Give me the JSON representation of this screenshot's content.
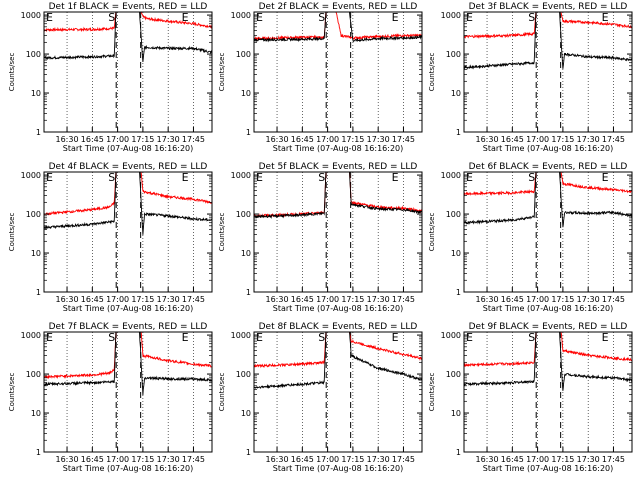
{
  "chart_data": [
    {
      "type": "line",
      "title": "Det 1f BLACK = Events, RED = LLD",
      "xlabel": "Start Time (07-Aug-08 16:16:20)",
      "ylabel": "Counts/sec",
      "ylim": [
        1,
        1200
      ],
      "yscale": "log",
      "xlim": [
        "16:16:20",
        "17:56:00"
      ],
      "xticks": [
        "16:30",
        "16:45",
        "17:00",
        "17:15",
        "17:30",
        "17:45"
      ],
      "yticks": [
        "1",
        "10",
        "100",
        "1000"
      ],
      "markers": [
        "E",
        "S",
        "E"
      ],
      "series": [
        {
          "color": "#ff0000",
          "points": [
            [
              "16:16:20",
              420
            ],
            [
              "16:45",
              430
            ],
            [
              "16:55",
              450
            ],
            [
              "16:58",
              460
            ],
            [
              "16:59",
              1200
            ],
            [
              "17:10",
              1200
            ],
            [
              "17:14",
              1200
            ],
            [
              "17:15",
              900
            ],
            [
              "17:18",
              800
            ],
            [
              "17:30",
              700
            ],
            [
              "17:45",
              600
            ],
            [
              "17:56",
              500
            ]
          ]
        },
        {
          "color": "#000000",
          "points": [
            [
              "16:16:20",
              80
            ],
            [
              "16:45",
              85
            ],
            [
              "16:58",
              90
            ],
            [
              "16:59",
              1200
            ],
            [
              "17:13",
              1200
            ],
            [
              "17:15",
              60
            ],
            [
              "17:16",
              150
            ],
            [
              "17:30",
              140
            ],
            [
              "17:45",
              140
            ],
            [
              "17:56",
              110
            ]
          ]
        }
      ]
    },
    {
      "type": "line",
      "title": "Det 2f BLACK = Events, RED = LLD",
      "xlabel": "Start Time (07-Aug-08 16:16:20)",
      "ylabel": "Counts/sec",
      "ylim": [
        1,
        1200
      ],
      "yscale": "log",
      "xlim": [
        "16:16:20",
        "17:56:00"
      ],
      "xticks": [
        "16:30",
        "16:45",
        "17:00",
        "17:15",
        "17:30",
        "17:45"
      ],
      "yticks": [
        "1",
        "10",
        "100",
        "1000"
      ],
      "markers": [
        "E",
        "S",
        "E"
      ],
      "series": [
        {
          "color": "#ff0000",
          "points": [
            [
              "16:16:20",
              250
            ],
            [
              "16:45",
              270
            ],
            [
              "16:58",
              270
            ],
            [
              "16:59",
              1200
            ],
            [
              "17:05",
              1200
            ],
            [
              "17:08",
              300
            ],
            [
              "17:15",
              260
            ],
            [
              "17:30",
              280
            ],
            [
              "17:45",
              300
            ],
            [
              "17:56",
              300
            ]
          ]
        },
        {
          "color": "#000000",
          "points": [
            [
              "16:16:20",
              230
            ],
            [
              "16:45",
              240
            ],
            [
              "16:58",
              250
            ],
            [
              "16:59",
              1200
            ],
            [
              "17:13",
              1200
            ],
            [
              "17:15",
              220
            ],
            [
              "17:30",
              250
            ],
            [
              "17:45",
              260
            ],
            [
              "17:56",
              270
            ]
          ]
        }
      ]
    },
    {
      "type": "line",
      "title": "Det 3f BLACK = Events, RED = LLD",
      "xlabel": "Start Time (07-Aug-08 16:16:20)",
      "ylabel": "Counts/sec",
      "ylim": [
        1,
        1200
      ],
      "yscale": "log",
      "xlim": [
        "16:16:20",
        "17:56:00"
      ],
      "xticks": [
        "16:30",
        "16:45",
        "17:00",
        "17:15",
        "17:30",
        "17:45"
      ],
      "yticks": [
        "1",
        "10",
        "100",
        "1000"
      ],
      "markers": [
        "E",
        "S",
        "E"
      ],
      "series": [
        {
          "color": "#ff0000",
          "points": [
            [
              "16:16:20",
              280
            ],
            [
              "16:45",
              300
            ],
            [
              "16:58",
              330
            ],
            [
              "16:59",
              1200
            ],
            [
              "17:14",
              1200
            ],
            [
              "17:15",
              700
            ],
            [
              "17:30",
              650
            ],
            [
              "17:45",
              580
            ],
            [
              "17:56",
              500
            ]
          ]
        },
        {
          "color": "#000000",
          "points": [
            [
              "16:16:20",
              45
            ],
            [
              "16:45",
              55
            ],
            [
              "16:58",
              60
            ],
            [
              "16:59",
              1200
            ],
            [
              "17:13",
              1200
            ],
            [
              "17:15",
              40
            ],
            [
              "17:16",
              100
            ],
            [
              "17:30",
              85
            ],
            [
              "17:45",
              80
            ],
            [
              "17:56",
              70
            ]
          ]
        }
      ]
    },
    {
      "type": "line",
      "title": "Det 4f BLACK = Events, RED = LLD",
      "xlabel": "Start Time (07-Aug-08 16:16:20)",
      "ylabel": "Counts/sec",
      "ylim": [
        1,
        1200
      ],
      "yscale": "log",
      "xlim": [
        "16:16:20",
        "17:56:00"
      ],
      "xticks": [
        "16:30",
        "16:45",
        "17:00",
        "17:15",
        "17:30",
        "17:45"
      ],
      "yticks": [
        "1",
        "10",
        "100",
        "1000"
      ],
      "markers": [
        "E",
        "S",
        "E"
      ],
      "series": [
        {
          "color": "#ff0000",
          "points": [
            [
              "16:16:20",
              100
            ],
            [
              "16:45",
              130
            ],
            [
              "16:55",
              150
            ],
            [
              "16:58",
              190
            ],
            [
              "16:59",
              1200
            ],
            [
              "17:14",
              1200
            ],
            [
              "17:15",
              380
            ],
            [
              "17:30",
              280
            ],
            [
              "17:45",
              240
            ],
            [
              "17:56",
              200
            ]
          ]
        },
        {
          "color": "#000000",
          "points": [
            [
              "16:16:20",
              45
            ],
            [
              "16:45",
              55
            ],
            [
              "16:58",
              65
            ],
            [
              "16:59",
              1200
            ],
            [
              "17:13",
              1200
            ],
            [
              "17:15",
              30
            ],
            [
              "17:16",
              100
            ],
            [
              "17:30",
              90
            ],
            [
              "17:45",
              75
            ],
            [
              "17:56",
              70
            ]
          ]
        }
      ]
    },
    {
      "type": "line",
      "title": "Det 5f BLACK = Events, RED = LLD",
      "xlabel": "Start Time (07-Aug-08 16:16:20)",
      "ylabel": "Counts/sec",
      "ylim": [
        1,
        1200
      ],
      "yscale": "log",
      "xlim": [
        "16:16:20",
        "17:56:00"
      ],
      "xticks": [
        "16:30",
        "16:45",
        "17:00",
        "17:15",
        "17:30",
        "17:45"
      ],
      "yticks": [
        "1",
        "10",
        "100",
        "1000"
      ],
      "markers": [
        "E",
        "S",
        "E"
      ],
      "series": [
        {
          "color": "#ff0000",
          "points": [
            [
              "16:16:20",
              90
            ],
            [
              "16:45",
              100
            ],
            [
              "16:58",
              110
            ],
            [
              "16:59",
              1200
            ],
            [
              "17:13",
              1200
            ],
            [
              "17:14",
              200
            ],
            [
              "17:30",
              150
            ],
            [
              "17:45",
              140
            ],
            [
              "17:56",
              120
            ]
          ]
        },
        {
          "color": "#000000",
          "points": [
            [
              "16:16:20",
              85
            ],
            [
              "16:45",
              95
            ],
            [
              "16:58",
              105
            ],
            [
              "16:59",
              1200
            ],
            [
              "17:13",
              1200
            ],
            [
              "17:14",
              180
            ],
            [
              "17:30",
              135
            ],
            [
              "17:45",
              130
            ],
            [
              "17:56",
              110
            ]
          ]
        }
      ]
    },
    {
      "type": "line",
      "title": "Det 6f BLACK = Events, RED = LLD",
      "xlabel": "Start Time (07-Aug-08 16:16:20)",
      "ylabel": "Counts/sec",
      "ylim": [
        1,
        1200
      ],
      "yscale": "log",
      "xlim": [
        "16:16:20",
        "17:56:00"
      ],
      "xticks": [
        "16:30",
        "16:45",
        "17:00",
        "17:15",
        "17:30",
        "17:45"
      ],
      "yticks": [
        "1",
        "10",
        "100",
        "1000"
      ],
      "markers": [
        "E",
        "S",
        "E"
      ],
      "series": [
        {
          "color": "#ff0000",
          "points": [
            [
              "16:16:20",
              330
            ],
            [
              "16:45",
              350
            ],
            [
              "16:58",
              380
            ],
            [
              "16:59",
              1200
            ],
            [
              "17:14",
              1200
            ],
            [
              "17:15",
              600
            ],
            [
              "17:30",
              480
            ],
            [
              "17:45",
              420
            ],
            [
              "17:56",
              380
            ]
          ]
        },
        {
          "color": "#000000",
          "points": [
            [
              "16:16:20",
              60
            ],
            [
              "16:45",
              70
            ],
            [
              "16:58",
              85
            ],
            [
              "16:59",
              1200
            ],
            [
              "17:13",
              1200
            ],
            [
              "17:15",
              45
            ],
            [
              "17:16",
              110
            ],
            [
              "17:30",
              105
            ],
            [
              "17:45",
              110
            ],
            [
              "17:56",
              90
            ]
          ]
        }
      ]
    },
    {
      "type": "line",
      "title": "Det 7f BLACK = Events, RED = LLD",
      "xlabel": "Start Time (07-Aug-08 16:16:20)",
      "ylabel": "Counts/sec",
      "ylim": [
        1,
        1200
      ],
      "yscale": "log",
      "xlim": [
        "16:16:20",
        "17:56:00"
      ],
      "xticks": [
        "16:30",
        "16:45",
        "17:00",
        "17:15",
        "17:30",
        "17:45"
      ],
      "yticks": [
        "1",
        "10",
        "100",
        "1000"
      ],
      "markers": [
        "E",
        "S",
        "E"
      ],
      "series": [
        {
          "color": "#ff0000",
          "points": [
            [
              "16:16:20",
              85
            ],
            [
              "16:45",
              95
            ],
            [
              "16:55",
              105
            ],
            [
              "16:58",
              130
            ],
            [
              "16:59",
              1200
            ],
            [
              "17:14",
              1200
            ],
            [
              "17:15",
              300
            ],
            [
              "17:30",
              220
            ],
            [
              "17:45",
              180
            ],
            [
              "17:56",
              160
            ]
          ]
        },
        {
          "color": "#000000",
          "points": [
            [
              "16:16:20",
              55
            ],
            [
              "16:45",
              60
            ],
            [
              "16:58",
              65
            ],
            [
              "16:59",
              1200
            ],
            [
              "17:13",
              1200
            ],
            [
              "17:15",
              30
            ],
            [
              "17:16",
              80
            ],
            [
              "17:30",
              75
            ],
            [
              "17:45",
              75
            ],
            [
              "17:56",
              70
            ]
          ]
        }
      ]
    },
    {
      "type": "line",
      "title": "Det 8f BLACK = Events, RED = LLD",
      "xlabel": "Start Time (07-Aug-08 16:16:20)",
      "ylabel": "Counts/sec",
      "ylim": [
        1,
        1200
      ],
      "yscale": "log",
      "xlim": [
        "16:16:20",
        "17:56:00"
      ],
      "xticks": [
        "16:30",
        "16:45",
        "17:00",
        "17:15",
        "17:30",
        "17:45"
      ],
      "yticks": [
        "1",
        "10",
        "100",
        "1000"
      ],
      "markers": [
        "E",
        "S",
        "E"
      ],
      "series": [
        {
          "color": "#ff0000",
          "points": [
            [
              "16:16:20",
              160
            ],
            [
              "16:45",
              180
            ],
            [
              "16:58",
              200
            ],
            [
              "16:59",
              1200
            ],
            [
              "17:13",
              1200
            ],
            [
              "17:14",
              700
            ],
            [
              "17:30",
              450
            ],
            [
              "17:45",
              320
            ],
            [
              "17:56",
              250
            ]
          ]
        },
        {
          "color": "#000000",
          "points": [
            [
              "16:16:20",
              45
            ],
            [
              "16:45",
              55
            ],
            [
              "16:58",
              60
            ],
            [
              "16:59",
              1200
            ],
            [
              "17:13",
              1200
            ],
            [
              "17:14",
              300
            ],
            [
              "17:30",
              140
            ],
            [
              "17:45",
              100
            ],
            [
              "17:56",
              70
            ]
          ]
        }
      ]
    },
    {
      "type": "line",
      "title": "Det 9f BLACK = Events, RED = LLD",
      "xlabel": "Start Time (07-Aug-08 16:16:20)",
      "ylabel": "Counts/sec",
      "ylim": [
        1,
        1200
      ],
      "yscale": "log",
      "xlim": [
        "16:16:20",
        "17:56:00"
      ],
      "xticks": [
        "16:30",
        "16:45",
        "17:00",
        "17:15",
        "17:30",
        "17:45"
      ],
      "yticks": [
        "1",
        "10",
        "100",
        "1000"
      ],
      "markers": [
        "E",
        "S",
        "E"
      ],
      "series": [
        {
          "color": "#ff0000",
          "points": [
            [
              "16:16:20",
              170
            ],
            [
              "16:45",
              185
            ],
            [
              "16:58",
              200
            ],
            [
              "16:59",
              1200
            ],
            [
              "17:14",
              1200
            ],
            [
              "17:15",
              400
            ],
            [
              "17:30",
              300
            ],
            [
              "17:45",
              260
            ],
            [
              "17:56",
              230
            ]
          ]
        },
        {
          "color": "#000000",
          "points": [
            [
              "16:16:20",
              55
            ],
            [
              "16:45",
              60
            ],
            [
              "16:58",
              65
            ],
            [
              "16:59",
              1200
            ],
            [
              "17:13",
              1200
            ],
            [
              "17:15",
              35
            ],
            [
              "17:16",
              100
            ],
            [
              "17:30",
              85
            ],
            [
              "17:45",
              80
            ],
            [
              "17:56",
              70
            ]
          ]
        }
      ]
    }
  ]
}
